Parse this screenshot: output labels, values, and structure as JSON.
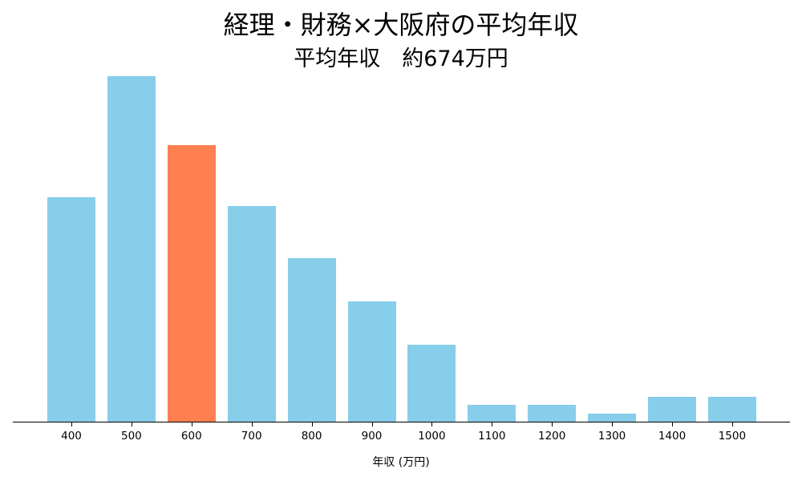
{
  "chart_data": {
    "type": "bar",
    "title": "経理・財務×大阪府の平均年収",
    "subtitle": "平均年収　約674万円",
    "xlabel": "年収 (万円)",
    "ylabel": "",
    "categories": [
      "400",
      "500",
      "600",
      "700",
      "800",
      "900",
      "1000",
      "1100",
      "1200",
      "1300",
      "1400",
      "1500"
    ],
    "values": [
      26,
      40,
      32,
      25,
      19,
      14,
      9,
      2,
      2,
      1,
      3,
      3
    ],
    "highlight_category": "600",
    "colors": {
      "default": "#87CEEB",
      "highlight": "#FF7F50"
    },
    "grid": false,
    "legend": null
  }
}
